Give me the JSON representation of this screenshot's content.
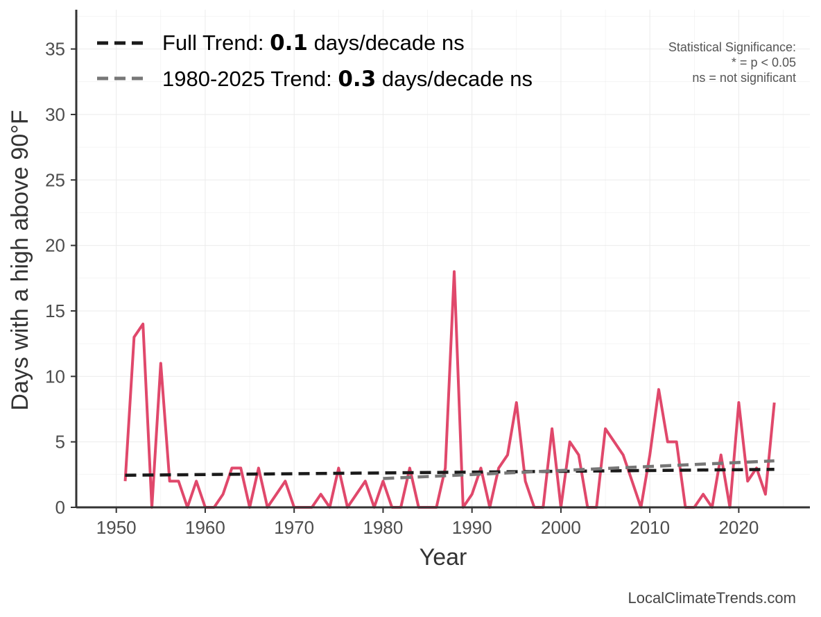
{
  "chart_data": {
    "type": "line",
    "xlabel": "Year",
    "ylabel": "Days with a high above 90°F",
    "xlim": [
      1945.5,
      2028
    ],
    "ylim": [
      0,
      38
    ],
    "x_ticks": [
      1950,
      1960,
      1970,
      1980,
      1990,
      2000,
      2010,
      2020
    ],
    "y_ticks": [
      0,
      5,
      10,
      15,
      20,
      25,
      30,
      35
    ],
    "grid": true,
    "legend_position": "top-left",
    "series": [
      {
        "color": "#e0486b",
        "x": [
          1951,
          1952,
          1953,
          1954,
          1955,
          1956,
          1957,
          1958,
          1959,
          1960,
          1961,
          1962,
          1963,
          1964,
          1965,
          1966,
          1967,
          1968,
          1969,
          1970,
          1971,
          1972,
          1973,
          1974,
          1975,
          1976,
          1977,
          1978,
          1979,
          1980,
          1981,
          1982,
          1983,
          1984,
          1985,
          1986,
          1987,
          1988,
          1989,
          1990,
          1991,
          1992,
          1993,
          1994,
          1995,
          1996,
          1997,
          1998,
          1999,
          2000,
          2001,
          2002,
          2003,
          2004,
          2005,
          2006,
          2007,
          2008,
          2009,
          2010,
          2011,
          2012,
          2013,
          2014,
          2015,
          2016,
          2017,
          2018,
          2019,
          2020,
          2021,
          2022,
          2023,
          2024
        ],
        "values": [
          2,
          13,
          14,
          0,
          11,
          2,
          2,
          0,
          2,
          0,
          0,
          1,
          3,
          3,
          0,
          3,
          0,
          1,
          2,
          0,
          0,
          0,
          1,
          0,
          3,
          0,
          1,
          2,
          0,
          2,
          0,
          0,
          3,
          0,
          0,
          0,
          3,
          18,
          0,
          1,
          3,
          0,
          3,
          4,
          8,
          2,
          0,
          0,
          6,
          0,
          5,
          4,
          0,
          0,
          6,
          5,
          4,
          2,
          0,
          4,
          9,
          5,
          5,
          0,
          0,
          1,
          0,
          4,
          0,
          8,
          2,
          3,
          1,
          8
        ]
      },
      {
        "name": "Full Trend",
        "color": "#1a1a1a",
        "style": "dashed",
        "x": [
          1951,
          2024
        ],
        "values": [
          2.45,
          2.9
        ]
      },
      {
        "name": "1980-2025 Trend",
        "color": "#777777",
        "style": "dashed",
        "x": [
          1980,
          2024
        ],
        "values": [
          2.2,
          3.55
        ]
      }
    ],
    "legend": [
      {
        "prefix": "Full Trend: ",
        "value": "0.1",
        "suffix": " days/decade ns",
        "color": "#1a1a1a"
      },
      {
        "prefix": "1980-2025 Trend: ",
        "value": "0.3",
        "suffix": " days/decade ns",
        "color": "#777777"
      }
    ],
    "annotations": {
      "significance_lines": [
        "Statistical Significance:",
        "* = p < 0.05",
        "ns = not significant"
      ],
      "credit": "LocalClimateTrends.com"
    }
  }
}
